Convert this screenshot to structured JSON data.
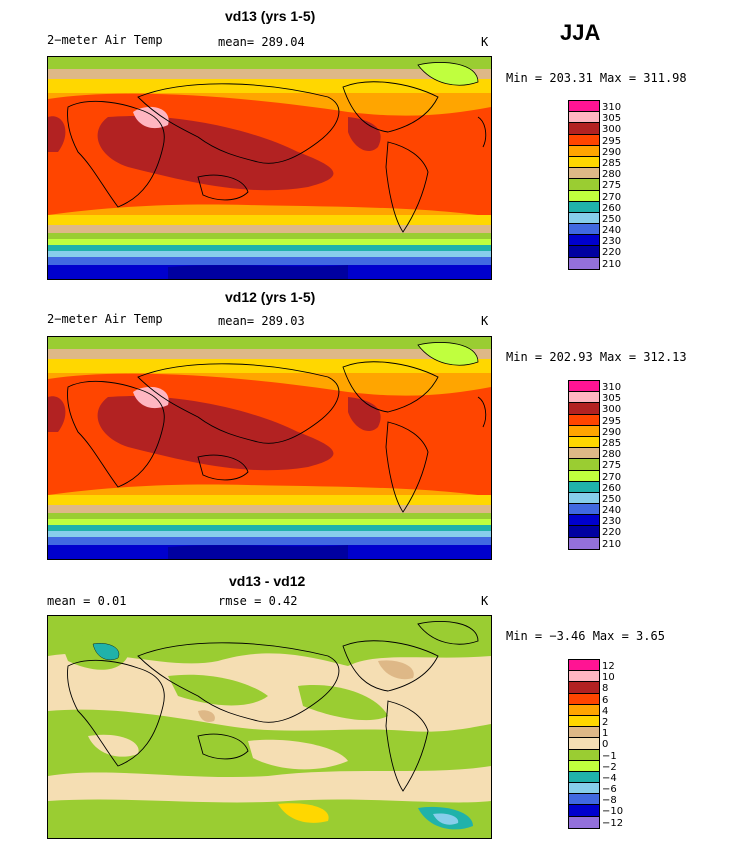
{
  "season": "JJA",
  "panels": [
    {
      "title": "vd13 (yrs 1-5)",
      "left_text": "2−meter Air Temp",
      "center_text": "mean= 289.04",
      "units": "K",
      "minmax": "Min = 203.31 Max = 311.98",
      "legend_levels": [
        "310",
        "305",
        "300",
        "295",
        "290",
        "285",
        "280",
        "275",
        "270",
        "260",
        "250",
        "240",
        "230",
        "220",
        "210"
      ],
      "legend_colors": [
        "#ff1493",
        "#ffb6c1",
        "#b22222",
        "#ff4500",
        "#ffa500",
        "#ffd700",
        "#deb887",
        "#9acd32",
        "#c0ff3e",
        "#20b2aa",
        "#87ceeb",
        "#4169e1",
        "#0000cd",
        "#0000a0",
        "#9370db"
      ]
    },
    {
      "title": "vd12 (yrs 1-5)",
      "left_text": "2−meter Air Temp",
      "center_text": "mean= 289.03",
      "units": "K",
      "minmax": "Min = 202.93 Max = 312.13",
      "legend_levels": [
        "310",
        "305",
        "300",
        "295",
        "290",
        "285",
        "280",
        "275",
        "270",
        "260",
        "250",
        "240",
        "230",
        "220",
        "210"
      ],
      "legend_colors": [
        "#ff1493",
        "#ffb6c1",
        "#b22222",
        "#ff4500",
        "#ffa500",
        "#ffd700",
        "#deb887",
        "#9acd32",
        "#c0ff3e",
        "#20b2aa",
        "#87ceeb",
        "#4169e1",
        "#0000cd",
        "#0000a0",
        "#9370db"
      ]
    },
    {
      "title": "vd13 - vd12",
      "left_text": "mean =    0.01",
      "center_text": "rmse =    0.42",
      "units": "K",
      "minmax": "Min =  −3.46 Max =    3.65",
      "legend_levels": [
        "12",
        "10",
        "8",
        "6",
        "4",
        "2",
        "1",
        "0",
        "−1",
        "−2",
        "−4",
        "−6",
        "−8",
        "−10",
        "−12"
      ],
      "legend_colors": [
        "#ff1493",
        "#ffb6c1",
        "#b22222",
        "#ff4500",
        "#ffa500",
        "#ffd700",
        "#deb887",
        "#f5deb3",
        "#9acd32",
        "#c0ff3e",
        "#20b2aa",
        "#87ceeb",
        "#4169e1",
        "#0000cd",
        "#9370db"
      ]
    }
  ]
}
